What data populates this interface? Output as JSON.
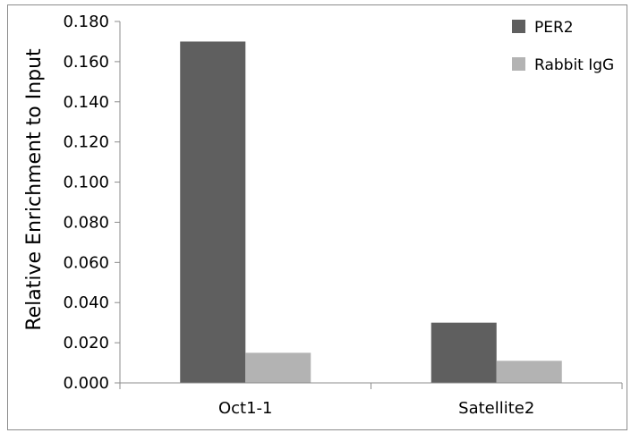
{
  "chart_data": {
    "type": "bar",
    "title": "",
    "xlabel": "",
    "ylabel": "Relative Enrichment to Input",
    "ylim": [
      0,
      0.18
    ],
    "yticks": [
      "0.000",
      "0.020",
      "0.040",
      "0.060",
      "0.080",
      "0.100",
      "0.120",
      "0.140",
      "0.160",
      "0.180"
    ],
    "categories": [
      "Oct1-1",
      "Satellite2"
    ],
    "series": [
      {
        "name": "PER2",
        "values": [
          0.17,
          0.03
        ],
        "color": "#5f5f5f"
      },
      {
        "name": "Rabbit IgG",
        "values": [
          0.015,
          0.011
        ],
        "color": "#b3b3b3"
      }
    ],
    "legend_position": "top-right",
    "grid": false
  }
}
